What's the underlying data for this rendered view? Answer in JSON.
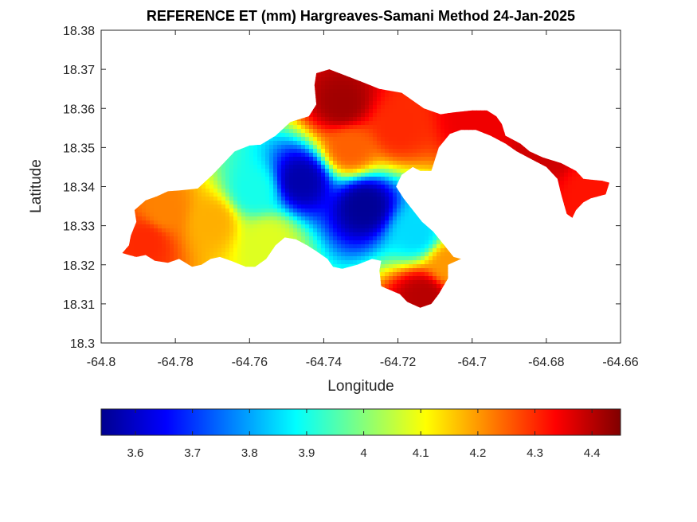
{
  "chart_data": {
    "type": "heatmap",
    "title": "REFERENCE ET (mm) Hargreaves-Samani Method  24-Jan-2025",
    "xlabel": "Longitude",
    "ylabel": "Latitude",
    "xlim": [
      -64.8,
      -64.66
    ],
    "ylim": [
      18.3,
      18.38
    ],
    "xticks": [
      "-64.8",
      "-64.78",
      "-64.76",
      "-64.74",
      "-64.72",
      "-64.7",
      "-64.68",
      "-64.66"
    ],
    "yticks": [
      "18.3",
      "18.31",
      "18.32",
      "18.33",
      "18.34",
      "18.35",
      "18.36",
      "18.37",
      "18.38"
    ],
    "grid": false,
    "colormap": "jet",
    "colorbar": {
      "orientation": "horizontal",
      "placement": "bottom",
      "range": [
        3.54,
        4.45
      ],
      "ticks": [
        "3.6",
        "3.7",
        "3.8",
        "3.9",
        "4",
        "4.1",
        "4.2",
        "4.3",
        "4.4"
      ]
    },
    "region_outline": [
      [
        -64.7943,
        18.323
      ],
      [
        -64.7925,
        18.325
      ],
      [
        -64.792,
        18.3275
      ],
      [
        -64.7905,
        18.331
      ],
      [
        -64.791,
        18.334
      ],
      [
        -64.788,
        18.3365
      ],
      [
        -64.785,
        18.3375
      ],
      [
        -64.782,
        18.3388
      ],
      [
        -64.779,
        18.339
      ],
      [
        -64.774,
        18.3395
      ],
      [
        -64.77,
        18.343
      ],
      [
        -64.7665,
        18.3465
      ],
      [
        -64.764,
        18.349
      ],
      [
        -64.76,
        18.3505
      ],
      [
        -64.757,
        18.3507
      ],
      [
        -64.753,
        18.353
      ],
      [
        -64.749,
        18.3565
      ],
      [
        -64.744,
        18.358
      ],
      [
        -64.742,
        18.361
      ],
      [
        -64.7425,
        18.366
      ],
      [
        -64.742,
        18.369
      ],
      [
        -64.7385,
        18.37
      ],
      [
        -64.733,
        18.368
      ],
      [
        -64.729,
        18.3665
      ],
      [
        -64.725,
        18.365
      ],
      [
        -64.719,
        18.364
      ],
      [
        -64.713,
        18.36
      ],
      [
        -64.7085,
        18.3585
      ],
      [
        -64.705,
        18.359
      ],
      [
        -64.7,
        18.3595
      ],
      [
        -64.696,
        18.3595
      ],
      [
        -64.6935,
        18.358
      ],
      [
        -64.692,
        18.356
      ],
      [
        -64.691,
        18.353
      ],
      [
        -64.689,
        18.352
      ],
      [
        -64.687,
        18.351
      ],
      [
        -64.6845,
        18.349
      ],
      [
        -64.681,
        18.3475
      ],
      [
        -64.676,
        18.346
      ],
      [
        -64.672,
        18.344
      ],
      [
        -64.67,
        18.342
      ],
      [
        -64.668,
        18.3418
      ],
      [
        -64.665,
        18.3415
      ],
      [
        -64.663,
        18.341
      ],
      [
        -64.664,
        18.338
      ],
      [
        -64.668,
        18.337
      ],
      [
        -64.67,
        18.336
      ],
      [
        -64.672,
        18.334
      ],
      [
        -64.673,
        18.332
      ],
      [
        -64.6745,
        18.333
      ],
      [
        -64.676,
        18.338
      ],
      [
        -64.677,
        18.342
      ],
      [
        -64.68,
        18.345
      ],
      [
        -64.684,
        18.347
      ],
      [
        -64.688,
        18.349
      ],
      [
        -64.691,
        18.351
      ],
      [
        -64.695,
        18.353
      ],
      [
        -64.699,
        18.3545
      ],
      [
        -64.703,
        18.3545
      ],
      [
        -64.706,
        18.3535
      ],
      [
        -64.709,
        18.35
      ],
      [
        -64.711,
        18.344
      ],
      [
        -64.714,
        18.344
      ],
      [
        -64.716,
        18.345
      ],
      [
        -64.719,
        18.343
      ],
      [
        -64.7205,
        18.34
      ],
      [
        -64.7185,
        18.337
      ],
      [
        -64.716,
        18.334
      ],
      [
        -64.7135,
        18.331
      ],
      [
        -64.7105,
        18.3285
      ],
      [
        -64.7075,
        18.325
      ],
      [
        -64.705,
        18.322
      ],
      [
        -64.703,
        18.3215
      ],
      [
        -64.7065,
        18.32
      ],
      [
        -64.7065,
        18.3165
      ],
      [
        -64.709,
        18.3125
      ],
      [
        -64.711,
        18.31
      ],
      [
        -64.714,
        18.309
      ],
      [
        -64.7175,
        18.3105
      ],
      [
        -64.7195,
        18.3125
      ],
      [
        -64.722,
        18.3135
      ],
      [
        -64.7245,
        18.3145
      ],
      [
        -64.725,
        18.3185
      ],
      [
        -64.7245,
        18.321
      ],
      [
        -64.727,
        18.3215
      ],
      [
        -64.731,
        18.32
      ],
      [
        -64.735,
        18.319
      ],
      [
        -64.7375,
        18.3195
      ],
      [
        -64.739,
        18.3215
      ],
      [
        -64.742,
        18.3235
      ],
      [
        -64.7445,
        18.325
      ],
      [
        -64.7475,
        18.3265
      ],
      [
        -64.7505,
        18.327
      ],
      [
        -64.753,
        18.325
      ],
      [
        -64.7555,
        18.3215
      ],
      [
        -64.7585,
        18.3195
      ],
      [
        -64.761,
        18.3195
      ],
      [
        -64.765,
        18.321
      ],
      [
        -64.768,
        18.322
      ],
      [
        -64.7705,
        18.3215
      ],
      [
        -64.773,
        18.32
      ],
      [
        -64.7755,
        18.3195
      ],
      [
        -64.779,
        18.3215
      ],
      [
        -64.782,
        18.3205
      ],
      [
        -64.7855,
        18.321
      ],
      [
        -64.788,
        18.3225
      ],
      [
        -64.7905,
        18.322
      ],
      [
        -64.7925,
        18.3225
      ]
    ],
    "field_centers": [
      {
        "lon": -64.746,
        "lat": 18.3415,
        "value": 3.58
      },
      {
        "lon": -64.729,
        "lat": 18.335,
        "value": 3.56
      },
      {
        "lon": -64.715,
        "lat": 18.328,
        "value": 3.85
      },
      {
        "lon": -64.759,
        "lat": 18.339,
        "value": 3.9
      },
      {
        "lon": -64.733,
        "lat": 18.35,
        "value": 4.25
      },
      {
        "lon": -64.735,
        "lat": 18.361,
        "value": 4.42
      },
      {
        "lon": -64.72,
        "lat": 18.355,
        "value": 4.3
      },
      {
        "lon": -64.77,
        "lat": 18.331,
        "value": 4.18
      },
      {
        "lon": -64.788,
        "lat": 18.326,
        "value": 4.3
      },
      {
        "lon": -64.783,
        "lat": 18.334,
        "value": 4.22
      },
      {
        "lon": -64.755,
        "lat": 18.326,
        "value": 4.08
      },
      {
        "lon": -64.7,
        "lat": 18.357,
        "value": 4.35
      },
      {
        "lon": -64.68,
        "lat": 18.348,
        "value": 4.38
      },
      {
        "lon": -64.669,
        "lat": 18.339,
        "value": 4.32
      },
      {
        "lon": -64.713,
        "lat": 18.312,
        "value": 4.4
      },
      {
        "lon": -64.706,
        "lat": 18.32,
        "value": 4.2
      }
    ]
  }
}
